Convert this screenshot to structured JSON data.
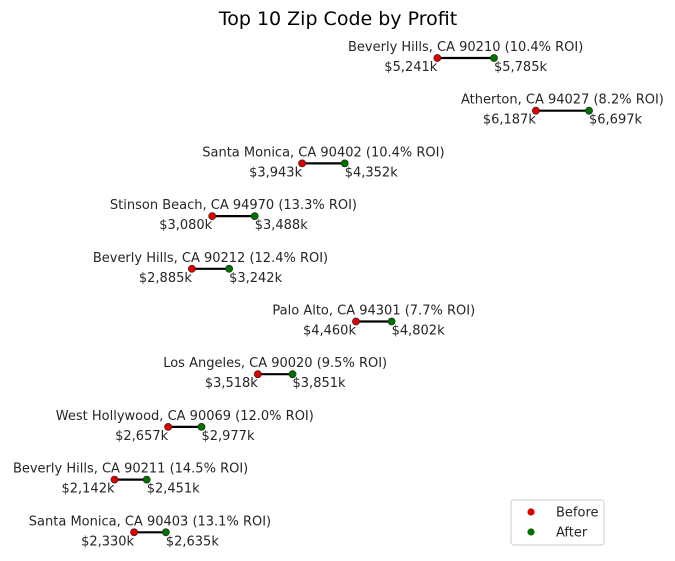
{
  "chart_data": {
    "type": "dumbbell",
    "title": "Top 10 Zip Code by Profit",
    "xlabel": "",
    "ylabel": "",
    "grid": false,
    "legend_position": "bottom-right",
    "series": [
      {
        "name": "Before",
        "color": "#e00000"
      },
      {
        "name": "After",
        "color": "#007000"
      }
    ],
    "rows": [
      {
        "label": "Beverly Hills, CA 90210 (10.4% ROI)",
        "before": 5241,
        "after": 5785,
        "before_label": "$5,241k",
        "after_label": "$5,785k"
      },
      {
        "label": "Atherton, CA 94027 (8.2% ROI)",
        "before": 6187,
        "after": 6697,
        "before_label": "$6,187k",
        "after_label": "$6,697k"
      },
      {
        "label": "Santa Monica, CA 90402 (10.4% ROI)",
        "before": 3943,
        "after": 4352,
        "before_label": "$3,943k",
        "after_label": "$4,352k"
      },
      {
        "label": "Stinson Beach, CA 94970 (13.3% ROI)",
        "before": 3080,
        "after": 3488,
        "before_label": "$3,080k",
        "after_label": "$3,488k"
      },
      {
        "label": "Beverly Hills, CA 90212 (12.4% ROI)",
        "before": 2885,
        "after": 3242,
        "before_label": "$2,885k",
        "after_label": "$3,242k"
      },
      {
        "label": "Palo Alto, CA 94301 (7.7% ROI)",
        "before": 4460,
        "after": 4802,
        "before_label": "$4,460k",
        "after_label": "$4,802k"
      },
      {
        "label": "Los Angeles, CA 90020 (9.5% ROI)",
        "before": 3518,
        "after": 3851,
        "before_label": "$3,518k",
        "after_label": "$3,851k"
      },
      {
        "label": "West Hollywood, CA 90069 (12.0% ROI)",
        "before": 2657,
        "after": 2977,
        "before_label": "$2,657k",
        "after_label": "$2,977k"
      },
      {
        "label": "Beverly Hills, CA 90211 (14.5% ROI)",
        "before": 2142,
        "after": 2451,
        "before_label": "$2,142k",
        "after_label": "$2,451k"
      },
      {
        "label": "Santa Monica, CA 90403 (13.1% ROI)",
        "before": 2330,
        "after": 2635,
        "before_label": "$2,330k",
        "after_label": "$2,635k"
      }
    ]
  }
}
